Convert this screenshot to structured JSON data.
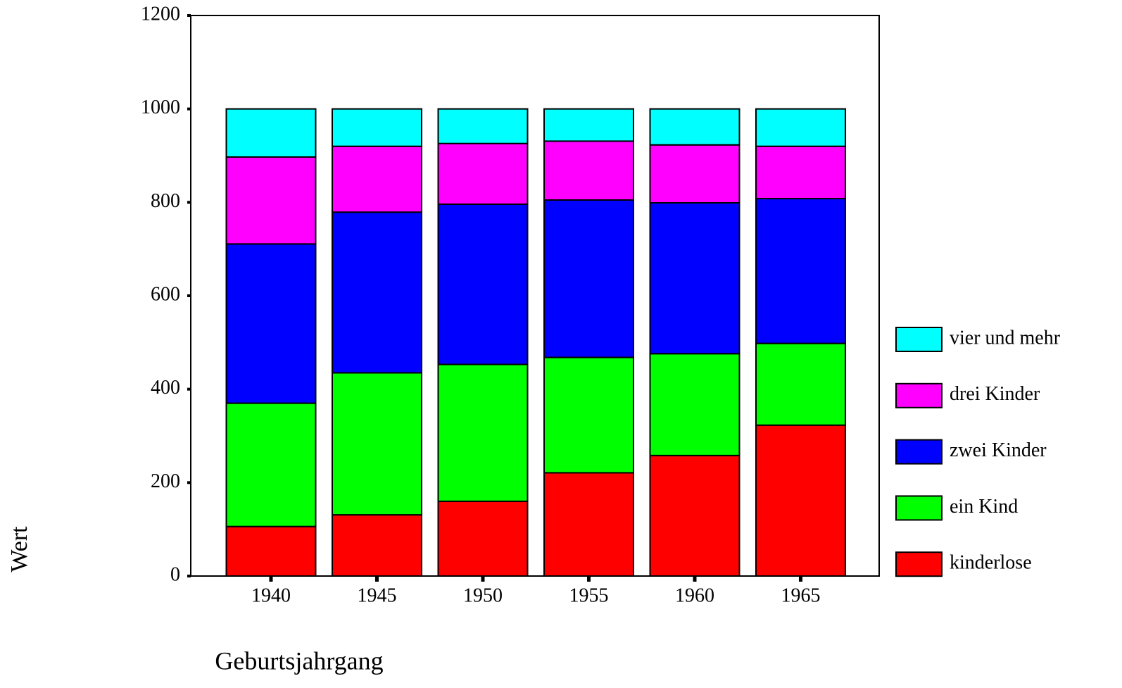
{
  "chart_data": {
    "type": "stacked_bar",
    "y_label": "Wert",
    "x_label": "Geburtsjahrgang",
    "categories": [
      "1940",
      "1945",
      "1950",
      "1955",
      "1960",
      "1965"
    ],
    "series": [
      {
        "name": "kinderlose",
        "color": "#ff0000",
        "values": [
          106,
          131,
          160,
          221,
          258,
          323
        ]
      },
      {
        "name": "ein Kind",
        "color": "#00ff00",
        "values": [
          264,
          304,
          293,
          247,
          218,
          175
        ]
      },
      {
        "name": "zwei Kinder",
        "color": "#0000ff",
        "values": [
          341,
          344,
          343,
          337,
          323,
          310
        ]
      },
      {
        "name": "drei Kinder",
        "color": "#ff00ff",
        "values": [
          186,
          141,
          130,
          126,
          124,
          112
        ]
      },
      {
        "name": "vier und mehr",
        "color": "#00ffff",
        "values": [
          103,
          80,
          74,
          69,
          77,
          80
        ]
      }
    ],
    "ylim": [
      0,
      1200
    ],
    "yticks": [
      0,
      200,
      400,
      600,
      800,
      1000,
      1200
    ],
    "legend": "right"
  }
}
